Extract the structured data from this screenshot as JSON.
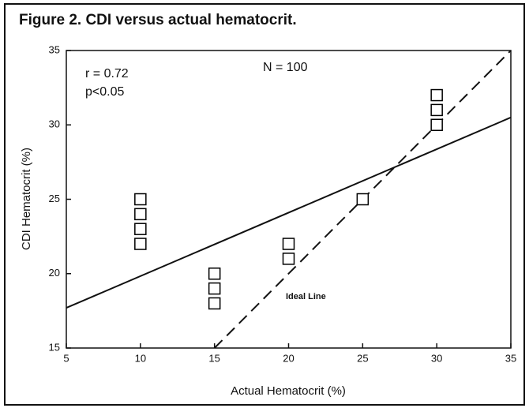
{
  "chart_data": {
    "type": "scatter",
    "title": "Figure 2. CDI versus actual hematocrit.",
    "x_label": "Actual Hematocrit (%)",
    "y_label": "CDI Hematocrit (%)",
    "annotations": [
      "r = 0.72",
      "p<0.05",
      "N = 100"
    ],
    "series": [
      {
        "x": [
          10,
          10,
          10,
          10,
          15,
          15,
          15,
          20,
          20,
          25,
          30,
          30,
          30
        ],
        "values": [
          25,
          24,
          23,
          22,
          20,
          19,
          18,
          22,
          21,
          25,
          32,
          31,
          30
        ],
        "color": "#000000"
      }
    ],
    "lines": [
      {
        "name": "Ideal Line",
        "x": [
          15,
          35
        ],
        "values": [
          15,
          35
        ],
        "dashed": true
      },
      {
        "x": [
          5,
          35
        ],
        "values": [
          17.7,
          30.5
        ],
        "dashed": false
      }
    ],
    "xlim": [
      5,
      35
    ],
    "xticks": [
      5,
      10,
      15,
      20,
      25,
      30,
      35
    ],
    "ylim": [
      15,
      35
    ],
    "yticks": [
      15,
      20,
      25,
      30,
      35
    ]
  }
}
